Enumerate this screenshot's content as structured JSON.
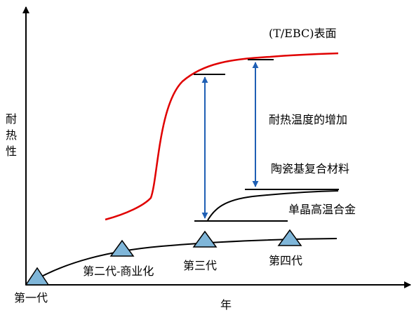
{
  "axes": {
    "y_label": "耐热性",
    "x_label": "年"
  },
  "curves": {
    "tbc_surface": {
      "label": "(T/EBC)表面",
      "color": "#e00000"
    },
    "cmc": {
      "label": "陶瓷基复合材料"
    },
    "single_crystal": {
      "label": "单晶高温合金"
    },
    "generation_curve": {
      "color": "#000000"
    }
  },
  "annotation": {
    "label": "耐热温度的增加",
    "arrow_color": "#1f5fb4"
  },
  "generations": [
    {
      "label": "第一代"
    },
    {
      "label": "第二代-商业化"
    },
    {
      "label": "第三代"
    },
    {
      "label": "第四代"
    }
  ],
  "marker_color": "#7fb6d9"
}
